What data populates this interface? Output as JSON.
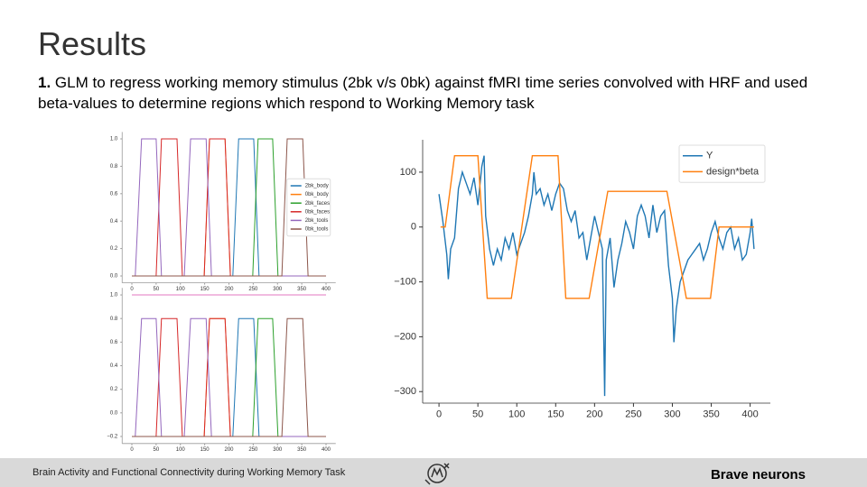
{
  "header": {
    "title": "Results"
  },
  "body": {
    "number": "1.",
    "text": "GLM to regress working memory stimulus (2bk v/s 0bk) against fMRI time series convolved with HRF and used beta-values to determine regions which respond to Working Memory task"
  },
  "chart_data": [
    {
      "type": "line",
      "legend": "right",
      "xlim": [
        -20,
        420
      ],
      "xticks": [
        0,
        50,
        100,
        150,
        200,
        250,
        300,
        350,
        400
      ],
      "ylim": [
        -0.05,
        1.05
      ],
      "yticks": [
        {
          "value": 0,
          "label": "0.0"
        },
        0.2,
        0.4,
        0.6,
        0.8,
        {
          "value": 1,
          "label": "1.0"
        }
      ],
      "series": [
        {
          "name": "2bk_body",
          "color": "#1f77b4",
          "x": [
            0,
            208,
            220,
            251,
            262,
            400
          ],
          "values": [
            0,
            0,
            1,
            1,
            0,
            0
          ]
        },
        {
          "name": "0bk_body",
          "color": "#ff7f0e",
          "x": [
            0,
            149,
            160,
            192,
            203,
            400
          ],
          "values": [
            0,
            0,
            1,
            1,
            0,
            0
          ]
        },
        {
          "name": "2bk_faces",
          "color": "#2ca02c",
          "x": [
            0,
            249,
            260,
            290,
            301,
            400
          ],
          "values": [
            0,
            0,
            1,
            1,
            0,
            0
          ]
        },
        {
          "name": "0bk_faces",
          "color": "#d62728",
          "x": [
            0,
            50,
            61,
            93,
            104,
            149,
            160,
            192,
            203,
            400
          ],
          "values": [
            0,
            0,
            1,
            1,
            0,
            0,
            1,
            1,
            0,
            0
          ]
        },
        {
          "name": "2bk_tools",
          "color": "#9467bd",
          "x": [
            0,
            7,
            20,
            50,
            61,
            108,
            121,
            153,
            164,
            400
          ],
          "values": [
            0,
            0,
            1,
            1,
            0,
            0,
            1,
            1,
            0,
            0
          ]
        },
        {
          "name": "0bk_tools",
          "color": "#8c564b",
          "x": [
            0,
            309,
            320,
            352,
            363,
            400
          ],
          "values": [
            0,
            0,
            1,
            1,
            0,
            0
          ]
        }
      ]
    },
    {
      "type": "line",
      "xlim": [
        -20,
        420
      ],
      "xticks": [
        0,
        50,
        100,
        150,
        200,
        250,
        300,
        350,
        400
      ],
      "ylim": [
        -0.26,
        1.06
      ],
      "yticks": [
        {
          "value": -0.2,
          "label": "−0.2"
        },
        {
          "value": 0,
          "label": "0.0"
        },
        0.2,
        0.4,
        0.6,
        0.8,
        {
          "value": 1,
          "label": "1.0"
        }
      ],
      "series": [
        {
          "color": "#1f77b4",
          "x": [
            0,
            208,
            220,
            251,
            262,
            400
          ],
          "values": [
            -0.2,
            -0.2,
            0.8,
            0.8,
            -0.2,
            -0.2
          ]
        },
        {
          "color": "#ff7f0e",
          "x": [
            0,
            149,
            160,
            192,
            203,
            400
          ],
          "values": [
            -0.2,
            -0.2,
            0.8,
            0.8,
            -0.2,
            -0.2
          ]
        },
        {
          "color": "#2ca02c",
          "x": [
            0,
            249,
            260,
            290,
            301,
            400
          ],
          "values": [
            -0.2,
            -0.2,
            0.8,
            0.8,
            -0.2,
            -0.2
          ]
        },
        {
          "color": "#d62728",
          "x": [
            0,
            50,
            61,
            93,
            104,
            149,
            160,
            192,
            203,
            400
          ],
          "values": [
            -0.2,
            -0.2,
            0.8,
            0.8,
            -0.2,
            -0.2,
            0.8,
            0.8,
            -0.2,
            -0.2
          ]
        },
        {
          "color": "#9467bd",
          "x": [
            0,
            7,
            20,
            50,
            61,
            108,
            121,
            153,
            164,
            400
          ],
          "values": [
            -0.2,
            -0.2,
            0.8,
            0.8,
            -0.2,
            -0.2,
            0.8,
            0.8,
            -0.2,
            -0.2
          ]
        },
        {
          "color": "#8c564b",
          "x": [
            0,
            309,
            320,
            352,
            363,
            400
          ],
          "values": [
            -0.2,
            -0.2,
            0.8,
            0.8,
            -0.2,
            -0.2
          ]
        },
        {
          "color": "#e377c2",
          "x": [
            0,
            400
          ],
          "values": [
            1,
            1
          ]
        }
      ]
    },
    {
      "type": "line",
      "legend": "upper right",
      "xlim": [
        -21,
        426
      ],
      "xticks": [
        0,
        50,
        100,
        150,
        200,
        250,
        300,
        350,
        400
      ],
      "ylim": [
        -321,
        159
      ],
      "yticks": [
        {
          "value": -300,
          "label": "−300"
        },
        {
          "value": -200,
          "label": "−200"
        },
        {
          "value": -100,
          "label": "−100"
        },
        0,
        100
      ],
      "series": [
        {
          "name": "Y",
          "color": "#1f77b4",
          "x": [
            0,
            5,
            10,
            12,
            15,
            20,
            25,
            30,
            35,
            40,
            45,
            50,
            55,
            58,
            60,
            65,
            70,
            75,
            80,
            85,
            90,
            95,
            100,
            105,
            110,
            115,
            120,
            122,
            125,
            130,
            135,
            140,
            145,
            150,
            155,
            160,
            165,
            170,
            175,
            180,
            185,
            190,
            195,
            200,
            205,
            210,
            213,
            215,
            220,
            225,
            230,
            235,
            240,
            245,
            250,
            255,
            260,
            265,
            270,
            275,
            280,
            285,
            290,
            295,
            300,
            302,
            305,
            310,
            315,
            320,
            325,
            330,
            335,
            340,
            345,
            350,
            355,
            360,
            365,
            370,
            375,
            380,
            385,
            390,
            395,
            400,
            402,
            405
          ],
          "values": [
            60,
            10,
            -50,
            -95,
            -40,
            -20,
            70,
            100,
            80,
            60,
            90,
            40,
            110,
            130,
            20,
            -40,
            -70,
            -40,
            -60,
            -20,
            -40,
            -10,
            -50,
            -30,
            -10,
            20,
            60,
            100,
            60,
            70,
            40,
            60,
            30,
            60,
            80,
            70,
            30,
            10,
            30,
            -20,
            -10,
            -60,
            -20,
            20,
            -10,
            -40,
            -308,
            -60,
            -20,
            -110,
            -60,
            -30,
            10,
            -10,
            -40,
            20,
            40,
            20,
            -20,
            40,
            -10,
            20,
            30,
            -70,
            -130,
            -210,
            -150,
            -100,
            -80,
            -60,
            -50,
            -40,
            -30,
            -60,
            -40,
            -10,
            10,
            -20,
            -40,
            -10,
            0,
            -40,
            -20,
            -60,
            -50,
            -10,
            15,
            -40
          ]
        },
        {
          "name": "design*beta",
          "color": "#ff7f0e",
          "x": [
            2,
            8,
            20,
            50,
            62,
            93,
            120,
            153,
            163,
            193,
            217,
            293,
            318,
            349,
            360,
            405
          ],
          "values": [
            0,
            0,
            130,
            130,
            -130,
            -130,
            130,
            130,
            -130,
            -130,
            65,
            65,
            -130,
            -130,
            0,
            0
          ]
        }
      ]
    }
  ],
  "footer": {
    "left": "Brain Activity and Functional Connectivity during Working Memory Task",
    "right": "Brave neurons"
  }
}
